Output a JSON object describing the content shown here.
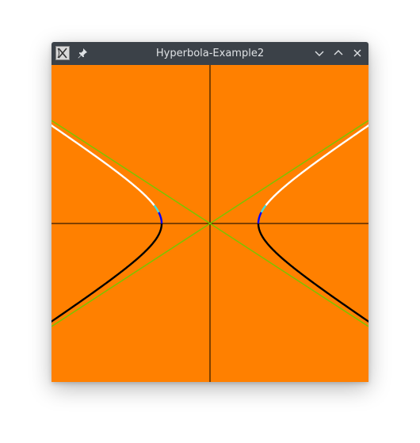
{
  "window": {
    "title": "Hyperbola-Example2",
    "app_icon": "app-icon",
    "pin_icon": "pin-icon",
    "buttons": [
      "minimize-icon",
      "maximize-icon",
      "close-icon"
    ]
  },
  "plot": {
    "background_color": "#ff8000",
    "axes_color": "#000000",
    "asymptote_color": "#80c000",
    "upper_branch_color": "#ffffff",
    "transition_color": "#40e0e0",
    "vertex_color": "#0000ff",
    "lower_branch_color": "#000000"
  }
}
